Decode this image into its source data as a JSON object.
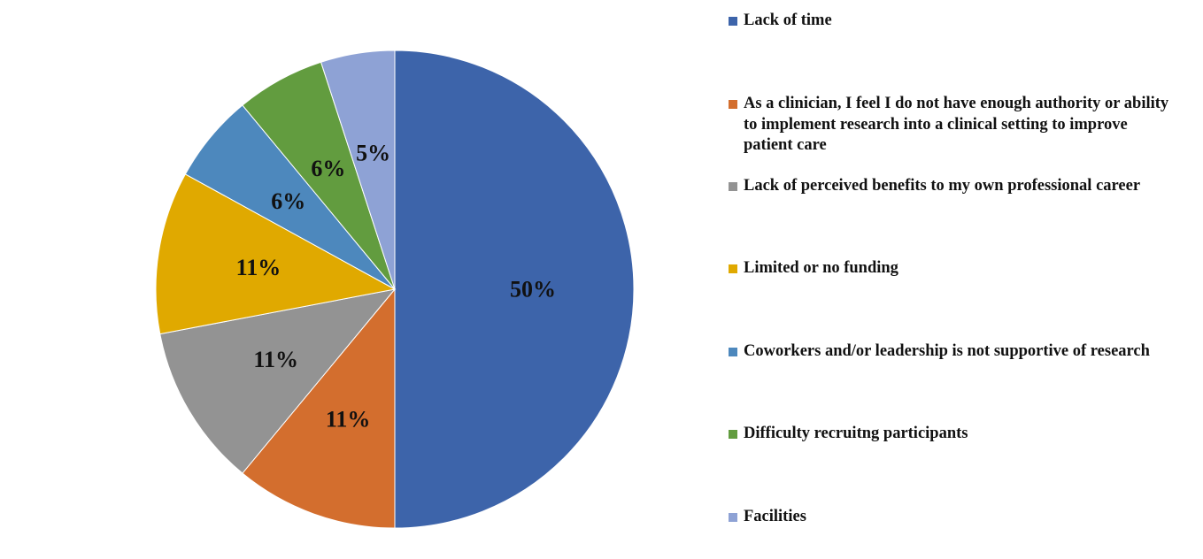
{
  "chart_data": {
    "type": "pie",
    "title": "",
    "start_angle_deg": 0,
    "direction": "clockwise",
    "slices": [
      {
        "label": "Lack of time",
        "value": 50,
        "display": "50%",
        "color": "#3d64aa"
      },
      {
        "label": "As a clinician, I feel I do not have enough authority or ability to implement research into a clinical setting to improve patient care",
        "value": 11,
        "display": "11%",
        "color": "#d36e2e"
      },
      {
        "label": "Lack of perceived benefits to my own professional career",
        "value": 11,
        "display": "11%",
        "color": "#939393"
      },
      {
        "label": "Limited or no funding",
        "value": 11,
        "display": "11%",
        "color": "#e0a900"
      },
      {
        "label": "Coworkers and/or leadership is not supportive of research",
        "value": 6,
        "display": "6%",
        "color": "#4d88bd"
      },
      {
        "label": "Difficulty recruitng participants",
        "value": 6,
        "display": "6%",
        "color": "#629c3f"
      },
      {
        "label": "Facilities",
        "value": 5,
        "display": "5%",
        "color": "#8ea2d5"
      }
    ],
    "legend_position": "right"
  }
}
